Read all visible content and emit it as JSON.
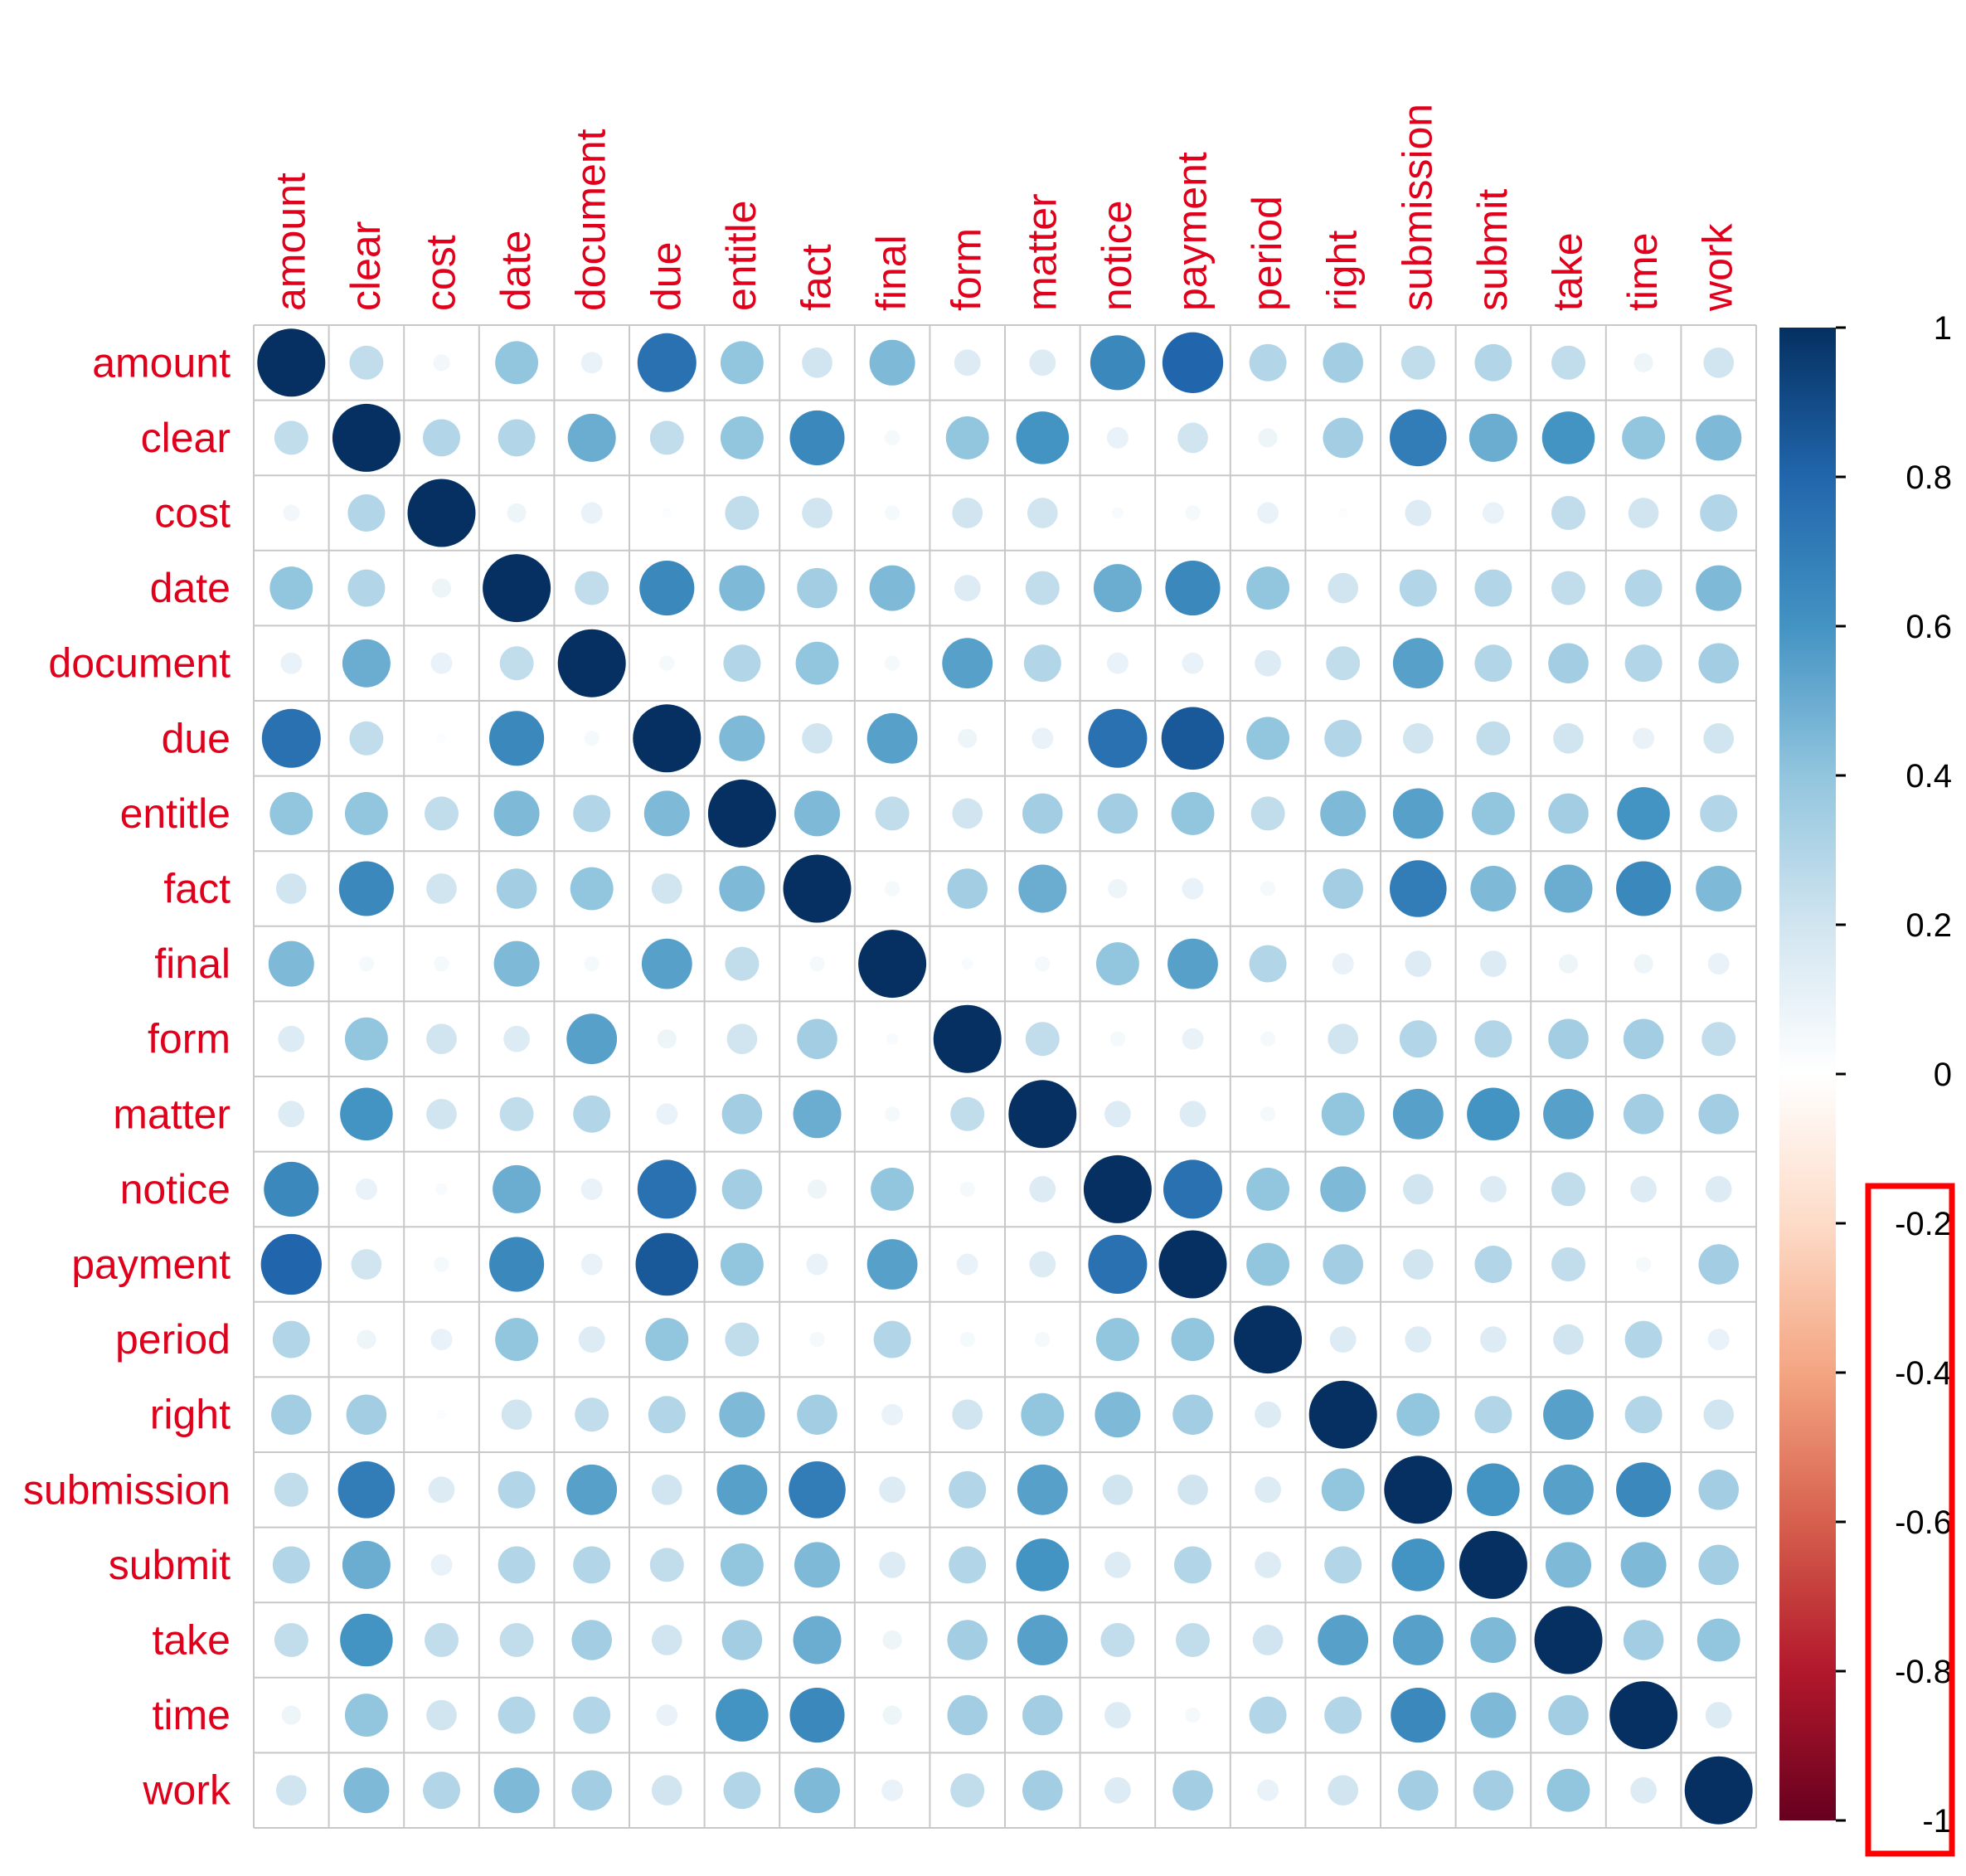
{
  "chart_data": {
    "type": "heatmap",
    "subtype": "correlation-circle-matrix",
    "variables": [
      "amount",
      "clear",
      "cost",
      "date",
      "document",
      "due",
      "entitle",
      "fact",
      "final",
      "form",
      "matter",
      "notice",
      "payment",
      "period",
      "right",
      "submission",
      "submit",
      "take",
      "time",
      "work"
    ],
    "matrix": [
      [
        1.0,
        0.25,
        0.06,
        0.4,
        0.1,
        0.75,
        0.4,
        0.2,
        0.45,
        0.15,
        0.15,
        0.65,
        0.8,
        0.3,
        0.35,
        0.25,
        0.3,
        0.25,
        0.08,
        0.2
      ],
      [
        0.25,
        1.0,
        0.3,
        0.3,
        0.5,
        0.25,
        0.4,
        0.65,
        0.05,
        0.4,
        0.6,
        0.1,
        0.2,
        0.08,
        0.35,
        0.7,
        0.5,
        0.6,
        0.4,
        0.45
      ],
      [
        0.06,
        0.3,
        1.0,
        0.08,
        0.1,
        0.02,
        0.25,
        0.2,
        0.05,
        0.2,
        0.2,
        0.03,
        0.05,
        0.1,
        0.02,
        0.15,
        0.1,
        0.25,
        0.2,
        0.3
      ],
      [
        0.4,
        0.3,
        0.08,
        1.0,
        0.25,
        0.65,
        0.45,
        0.35,
        0.45,
        0.15,
        0.25,
        0.5,
        0.65,
        0.4,
        0.2,
        0.3,
        0.3,
        0.25,
        0.3,
        0.45
      ],
      [
        0.1,
        0.5,
        0.1,
        0.25,
        1.0,
        0.05,
        0.3,
        0.4,
        0.05,
        0.55,
        0.3,
        0.1,
        0.1,
        0.15,
        0.25,
        0.55,
        0.3,
        0.35,
        0.3,
        0.35
      ],
      [
        0.75,
        0.25,
        0.02,
        0.65,
        0.05,
        1.0,
        0.45,
        0.2,
        0.55,
        0.08,
        0.1,
        0.75,
        0.85,
        0.4,
        0.3,
        0.2,
        0.25,
        0.2,
        0.1,
        0.2
      ],
      [
        0.4,
        0.4,
        0.25,
        0.45,
        0.3,
        0.45,
        1.0,
        0.45,
        0.25,
        0.2,
        0.35,
        0.35,
        0.4,
        0.25,
        0.45,
        0.55,
        0.4,
        0.35,
        0.6,
        0.3
      ],
      [
        0.2,
        0.65,
        0.2,
        0.35,
        0.4,
        0.2,
        0.45,
        1.0,
        0.05,
        0.35,
        0.5,
        0.08,
        0.1,
        0.05,
        0.35,
        0.7,
        0.45,
        0.5,
        0.65,
        0.45
      ],
      [
        0.45,
        0.05,
        0.05,
        0.45,
        0.05,
        0.55,
        0.25,
        0.05,
        1.0,
        0.03,
        0.05,
        0.4,
        0.55,
        0.3,
        0.1,
        0.15,
        0.15,
        0.08,
        0.08,
        0.1
      ],
      [
        0.15,
        0.4,
        0.2,
        0.15,
        0.55,
        0.08,
        0.2,
        0.35,
        0.03,
        1.0,
        0.25,
        0.05,
        0.1,
        0.05,
        0.2,
        0.3,
        0.3,
        0.35,
        0.35,
        0.25
      ],
      [
        0.15,
        0.6,
        0.2,
        0.25,
        0.3,
        0.1,
        0.35,
        0.5,
        0.05,
        0.25,
        1.0,
        0.15,
        0.15,
        0.05,
        0.4,
        0.55,
        0.6,
        0.55,
        0.35,
        0.35
      ],
      [
        0.65,
        0.1,
        0.03,
        0.5,
        0.1,
        0.75,
        0.35,
        0.08,
        0.4,
        0.05,
        0.15,
        1.0,
        0.75,
        0.4,
        0.45,
        0.2,
        0.15,
        0.25,
        0.15,
        0.15
      ],
      [
        0.8,
        0.2,
        0.05,
        0.65,
        0.1,
        0.85,
        0.4,
        0.1,
        0.55,
        0.1,
        0.15,
        0.75,
        1.0,
        0.4,
        0.35,
        0.2,
        0.3,
        0.25,
        0.05,
        0.35
      ],
      [
        0.3,
        0.08,
        0.1,
        0.4,
        0.15,
        0.4,
        0.25,
        0.05,
        0.3,
        0.05,
        0.05,
        0.4,
        0.4,
        1.0,
        0.15,
        0.15,
        0.15,
        0.2,
        0.3,
        0.1
      ],
      [
        0.35,
        0.35,
        0.02,
        0.2,
        0.25,
        0.3,
        0.45,
        0.35,
        0.1,
        0.2,
        0.4,
        0.45,
        0.35,
        0.15,
        1.0,
        0.4,
        0.3,
        0.55,
        0.3,
        0.2
      ],
      [
        0.25,
        0.7,
        0.15,
        0.3,
        0.55,
        0.2,
        0.55,
        0.7,
        0.15,
        0.3,
        0.55,
        0.2,
        0.2,
        0.15,
        0.4,
        1.0,
        0.6,
        0.55,
        0.65,
        0.35
      ],
      [
        0.3,
        0.5,
        0.1,
        0.3,
        0.3,
        0.25,
        0.4,
        0.45,
        0.15,
        0.3,
        0.6,
        0.15,
        0.3,
        0.15,
        0.3,
        0.6,
        1.0,
        0.45,
        0.45,
        0.35
      ],
      [
        0.25,
        0.6,
        0.25,
        0.25,
        0.35,
        0.2,
        0.35,
        0.5,
        0.08,
        0.35,
        0.55,
        0.25,
        0.25,
        0.2,
        0.55,
        0.55,
        0.45,
        1.0,
        0.35,
        0.4
      ],
      [
        0.08,
        0.4,
        0.2,
        0.3,
        0.3,
        0.1,
        0.6,
        0.65,
        0.08,
        0.35,
        0.35,
        0.15,
        0.05,
        0.3,
        0.3,
        0.65,
        0.45,
        0.35,
        1.0,
        0.15
      ],
      [
        0.2,
        0.45,
        0.3,
        0.45,
        0.35,
        0.2,
        0.3,
        0.45,
        0.1,
        0.25,
        0.35,
        0.15,
        0.35,
        0.1,
        0.2,
        0.35,
        0.35,
        0.4,
        0.15,
        1.0
      ]
    ],
    "colorbar": {
      "range": [
        -1,
        1
      ],
      "ticks": [
        "1",
        "0.8",
        "0.6",
        "0.4",
        "0.2",
        "0",
        "-0.2",
        "-0.4",
        "-0.6",
        "-0.8",
        "-1"
      ],
      "highlighted_ticks": [
        "-0.2",
        "-0.4",
        "-0.6",
        "-0.8",
        "-1"
      ]
    },
    "colors": {
      "label": "#e0001b",
      "grid": "#c8c8c8",
      "highlight_box": "#ff0000",
      "scale": [
        "#67001f",
        "#b2182b",
        "#d6604d",
        "#f4a582",
        "#fddbc7",
        "#ffffff",
        "#d1e5f0",
        "#92c5de",
        "#4393c3",
        "#2166ac",
        "#053061"
      ]
    }
  }
}
